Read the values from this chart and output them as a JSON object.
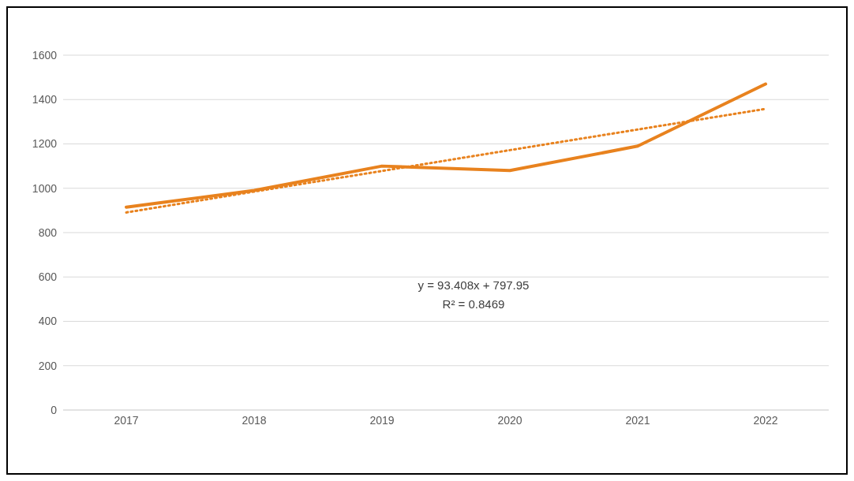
{
  "chart_data": {
    "type": "line",
    "categories": [
      "2017",
      "2018",
      "2019",
      "2020",
      "2021",
      "2022"
    ],
    "series": [
      {
        "color": "#e8821e",
        "values": [
          915,
          990,
          1100,
          1080,
          1190,
          1470
        ],
        "line_style": "solid"
      },
      {
        "type": "line",
        "color": "#e8821e",
        "values": [
          891,
          985,
          1078,
          1172,
          1265,
          1358
        ],
        "line_style": "dotted"
      }
    ],
    "ylim": [
      0,
      1600
    ],
    "yticks": [
      0,
      200,
      400,
      600,
      800,
      1000,
      1200,
      1400,
      1600
    ],
    "grid": "y",
    "marker": "none",
    "annotations": [
      "y = 93.408x + 797.95",
      "R² = 0.8469"
    ]
  }
}
